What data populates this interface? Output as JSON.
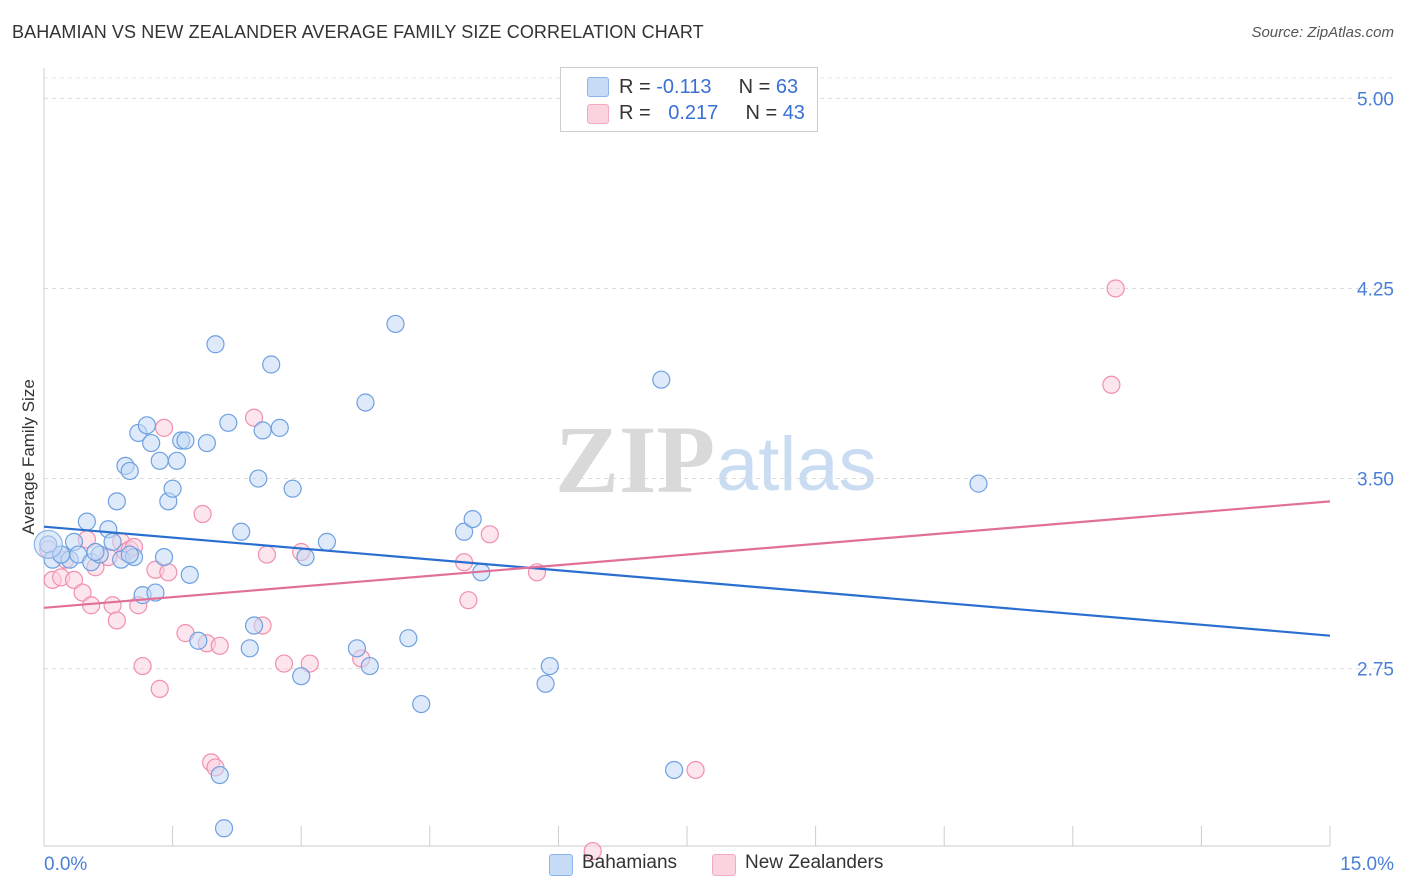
{
  "title": "BAHAMIAN VS NEW ZEALANDER AVERAGE FAMILY SIZE CORRELATION CHART",
  "source": "Source: ZipAtlas.com",
  "watermark": {
    "zip": "ZIP",
    "atlas": "atlas"
  },
  "legend": [
    {
      "r_label": "R = ",
      "r_value": "-0.113",
      "n_label": "N = ",
      "n_value": "63"
    },
    {
      "r_label": "R = ",
      "r_value": "0.217",
      "n_label": "N = ",
      "n_value": "43"
    }
  ],
  "bottom_legend": [
    "Bahamians",
    "New Zealanders"
  ],
  "chart_data": {
    "type": "scatter",
    "ylabel": "Average Family Size",
    "xlim": [
      0,
      15
    ],
    "ylim": [
      2.05,
      5.12
    ],
    "x_tick_labels": [
      "0.0%",
      "15.0%"
    ],
    "y_ticks": [
      2.75,
      3.5,
      4.25,
      5.0
    ],
    "y_tick_labels": [
      "2.75",
      "3.50",
      "4.25",
      "5.00"
    ],
    "grid": true,
    "colors": {
      "bahamians": "#8ab4ea",
      "new_zealanders": "#f4a9c0",
      "bahamians_line": "#2a6fd0",
      "new_zealanders_line": "#e0709a"
    },
    "series": [
      {
        "name": "Bahamians",
        "color": "#8ab4ea",
        "trend": {
          "x": [
            0,
            15
          ],
          "y": [
            3.31,
            2.88
          ]
        },
        "points": [
          [
            0.05,
            3.24
          ],
          [
            0.1,
            3.18
          ],
          [
            0.2,
            3.2
          ],
          [
            0.3,
            3.18
          ],
          [
            0.35,
            3.25
          ],
          [
            0.4,
            3.2
          ],
          [
            0.5,
            3.33
          ],
          [
            0.55,
            3.17
          ],
          [
            0.65,
            3.2
          ],
          [
            0.75,
            3.3
          ],
          [
            0.8,
            3.25
          ],
          [
            0.85,
            3.41
          ],
          [
            0.9,
            3.18
          ],
          [
            0.95,
            3.55
          ],
          [
            1.0,
            3.53
          ],
          [
            1.05,
            3.19
          ],
          [
            1.1,
            3.68
          ],
          [
            1.15,
            3.04
          ],
          [
            1.2,
            3.71
          ],
          [
            1.25,
            3.64
          ],
          [
            1.3,
            3.05
          ],
          [
            1.35,
            3.57
          ],
          [
            1.4,
            3.19
          ],
          [
            1.45,
            3.41
          ],
          [
            1.5,
            3.46
          ],
          [
            1.55,
            3.57
          ],
          [
            1.6,
            3.65
          ],
          [
            1.65,
            3.65
          ],
          [
            1.7,
            3.12
          ],
          [
            1.8,
            2.86
          ],
          [
            1.9,
            3.64
          ],
          [
            2.0,
            4.03
          ],
          [
            2.05,
            2.33
          ],
          [
            2.1,
            2.12
          ],
          [
            2.15,
            3.72
          ],
          [
            2.3,
            3.29
          ],
          [
            2.4,
            2.83
          ],
          [
            2.45,
            2.92
          ],
          [
            2.55,
            3.69
          ],
          [
            2.65,
            3.95
          ],
          [
            2.75,
            3.7
          ],
          [
            2.9,
            3.46
          ],
          [
            3.0,
            2.72
          ],
          [
            3.05,
            3.19
          ],
          [
            3.3,
            3.25
          ],
          [
            3.65,
            2.83
          ],
          [
            3.75,
            3.8
          ],
          [
            3.8,
            2.76
          ],
          [
            4.1,
            4.11
          ],
          [
            4.25,
            2.87
          ],
          [
            4.4,
            2.61
          ],
          [
            4.9,
            3.29
          ],
          [
            5.0,
            3.34
          ],
          [
            5.1,
            3.13
          ],
          [
            5.85,
            2.69
          ],
          [
            5.9,
            2.76
          ],
          [
            7.2,
            3.89
          ],
          [
            7.35,
            2.35
          ],
          [
            10.9,
            3.48
          ],
          [
            0.2,
            3.2
          ],
          [
            0.6,
            3.21
          ],
          [
            1.0,
            3.2
          ],
          [
            2.5,
            3.5
          ]
        ]
      },
      {
        "name": "New Zealanders",
        "color": "#f4a9c0",
        "trend": {
          "x": [
            0,
            15
          ],
          "y": [
            2.99,
            3.41
          ]
        },
        "points": [
          [
            0.05,
            3.22
          ],
          [
            0.1,
            3.1
          ],
          [
            0.2,
            3.11
          ],
          [
            0.25,
            3.18
          ],
          [
            0.35,
            3.1
          ],
          [
            0.45,
            3.05
          ],
          [
            0.5,
            3.26
          ],
          [
            0.55,
            3.0
          ],
          [
            0.6,
            3.15
          ],
          [
            0.75,
            3.19
          ],
          [
            0.8,
            3.0
          ],
          [
            0.85,
            2.94
          ],
          [
            0.9,
            3.25
          ],
          [
            0.95,
            3.21
          ],
          [
            1.0,
            3.22
          ],
          [
            1.05,
            3.23
          ],
          [
            1.1,
            3.0
          ],
          [
            1.15,
            2.76
          ],
          [
            1.3,
            3.14
          ],
          [
            1.35,
            2.67
          ],
          [
            1.4,
            3.7
          ],
          [
            1.45,
            3.13
          ],
          [
            1.65,
            2.89
          ],
          [
            1.85,
            3.36
          ],
          [
            1.9,
            2.85
          ],
          [
            1.95,
            2.38
          ],
          [
            2.0,
            2.36
          ],
          [
            2.05,
            2.84
          ],
          [
            2.45,
            3.74
          ],
          [
            2.55,
            2.92
          ],
          [
            2.6,
            3.2
          ],
          [
            2.8,
            2.77
          ],
          [
            3.0,
            3.21
          ],
          [
            3.1,
            2.77
          ],
          [
            3.7,
            2.79
          ],
          [
            4.9,
            3.17
          ],
          [
            4.95,
            3.02
          ],
          [
            5.2,
            3.28
          ],
          [
            5.75,
            3.13
          ],
          [
            6.4,
            2.03
          ],
          [
            7.6,
            2.35
          ],
          [
            12.5,
            4.25
          ],
          [
            12.45,
            3.87
          ]
        ]
      }
    ]
  }
}
